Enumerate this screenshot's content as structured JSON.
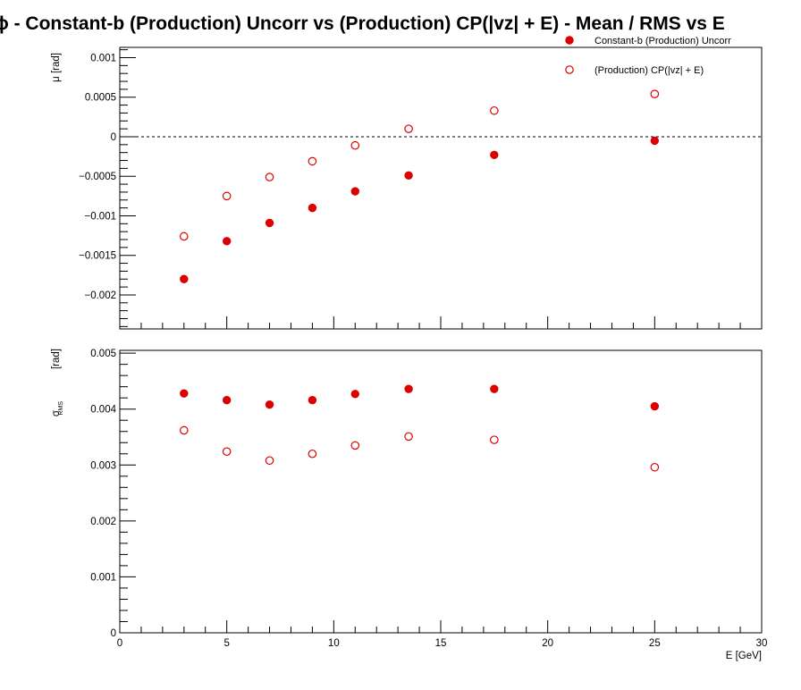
{
  "title": "ϕ  -  Constant-b (Production) Uncorr vs (Production) CP(|vz| + E)  -  Mean / RMS vs E",
  "colors": {
    "series": "#dd0000",
    "frame": "#000000",
    "zero_line": "#000000"
  },
  "legend": {
    "placement": "top-right",
    "entries": [
      {
        "label": "Constant-b (Production) Uncorr",
        "marker": "filled-circle"
      },
      {
        "label": "(Production) CP(|vz| + E)",
        "marker": "open-circle"
      }
    ]
  },
  "chart_data": [
    {
      "type": "scatter",
      "panel": "top",
      "ylabel": "μ  [rad]",
      "xlim": [
        0,
        30
      ],
      "ylim": [
        -0.00243,
        0.00113
      ],
      "y_ticks": [
        0.001,
        0.0005,
        0,
        -0.0005,
        -0.001,
        -0.0015,
        -0.002
      ],
      "y_tick_labels": [
        "0.001",
        "0.0005",
        "0",
        "−0.0005",
        "−0.001",
        "−0.0015",
        "−0.002"
      ],
      "zero_line": "dashed",
      "x": [
        3,
        5,
        7,
        9,
        11,
        13.5,
        17.5,
        25
      ],
      "series": [
        {
          "name": "Constant-b (Production) Uncorr",
          "marker": "filled-circle",
          "values": [
            -0.0018,
            -0.00132,
            -0.00109,
            -0.0009,
            -0.00069,
            -0.00049,
            -0.00023,
            -5e-05
          ]
        },
        {
          "name": "(Production) CP(|vz| + E)",
          "marker": "open-circle",
          "values": [
            -0.00126,
            -0.00075,
            -0.00051,
            -0.00031,
            -0.00011,
            0.0001,
            0.00033,
            0.00054
          ]
        }
      ]
    },
    {
      "type": "scatter",
      "panel": "bottom",
      "ylabel": "σ",
      "ylabel_subscript": "RMS",
      "ylabel_unit": "[rad]",
      "xlabel": "E  [GeV]",
      "xlim": [
        0,
        30
      ],
      "ylim": [
        0,
        0.00505
      ],
      "x_ticks": [
        0,
        5,
        10,
        15,
        20,
        25,
        30
      ],
      "x_tick_labels": [
        "0",
        "5",
        "10",
        "15",
        "20",
        "25",
        "30"
      ],
      "y_ticks": [
        0,
        0.001,
        0.002,
        0.003,
        0.004,
        0.005
      ],
      "y_tick_labels": [
        "0",
        "0.001",
        "0.002",
        "0.003",
        "0.004",
        "0.005"
      ],
      "x": [
        3,
        5,
        7,
        9,
        11,
        13.5,
        17.5,
        25
      ],
      "series": [
        {
          "name": "Constant-b (Production) Uncorr",
          "marker": "filled-circle",
          "values": [
            0.00428,
            0.00416,
            0.00408,
            0.00416,
            0.00427,
            0.00436,
            0.00436,
            0.00405
          ]
        },
        {
          "name": "(Production) CP(|vz| + E)",
          "marker": "open-circle",
          "values": [
            0.00362,
            0.00324,
            0.00308,
            0.0032,
            0.00335,
            0.00351,
            0.00345,
            0.00296
          ]
        }
      ]
    }
  ]
}
